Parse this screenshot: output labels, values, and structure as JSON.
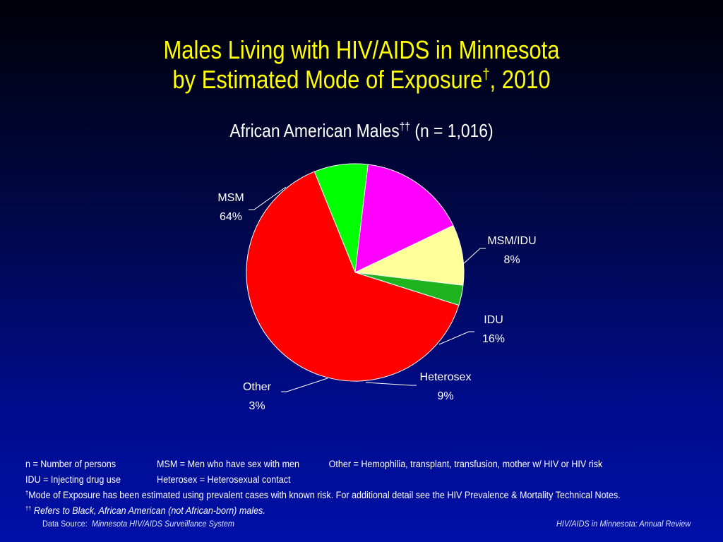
{
  "title_line1": "Males Living with HIV/AIDS in Minnesota",
  "title_line2_prefix": "by Estimated Mode of Exposure",
  "title_line2_sup": "†",
  "title_line2_suffix": ", 2010",
  "subtitle_main": "African American Males",
  "subtitle_sup": "††",
  "subtitle_n": " (n = 1,016)",
  "chart_data": {
    "type": "pie",
    "slices": [
      {
        "label": "MSM",
        "value": 64,
        "display": "64%",
        "color": "#ff0000"
      },
      {
        "label": "MSM/IDU",
        "value": 8,
        "display": "8%",
        "color": "#00ff00"
      },
      {
        "label": "IDU",
        "value": 16,
        "display": "16%",
        "color": "#ff00ff"
      },
      {
        "label": "Heterosex",
        "value": 9,
        "display": "9%",
        "color": "#ffff99"
      },
      {
        "label": "Other",
        "value": 3,
        "display": "3%",
        "color": "#1fb31f"
      }
    ]
  },
  "notes": {
    "row1": [
      "n = Number of persons",
      "MSM = Men who have sex with men",
      "Other = Hemophilia, transplant, transfusion, mother w/ HIV or HIV risk"
    ],
    "row2": [
      "IDU = Injecting drug use",
      "Heterosex = Heterosexual contact"
    ],
    "row3_sup": "†",
    "row3": "Mode of Exposure has been estimated using prevalent cases with known risk. For additional detail see the HIV Prevalence & Mortality Technical Notes.",
    "row4_sup": "††",
    "row4": "Refers to Black, African American (not African-born) males."
  },
  "footer": {
    "source_label": "Data Source:",
    "source_value": "Minnesota HIV/AIDS Surveillance System",
    "right": "HIV/AIDS in Minnesota: Annual Review"
  }
}
